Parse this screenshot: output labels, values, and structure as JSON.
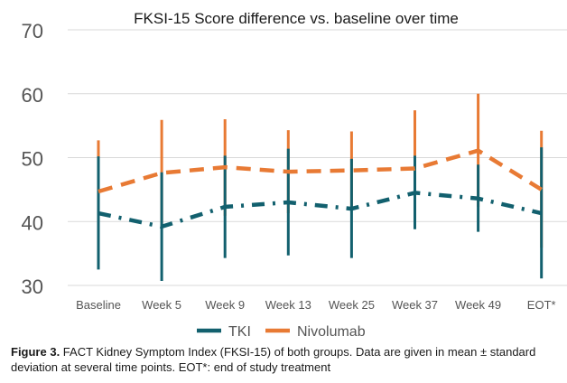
{
  "chart_data": {
    "type": "line",
    "title": "FKSI-15 Score difference vs. baseline over time",
    "categories": [
      "Baseline",
      "Week 5",
      "Week 9",
      "Week 13",
      "Week 25",
      "Week 37",
      "Week 49",
      "EOT*"
    ],
    "ylim": [
      30,
      70
    ],
    "yticks": [
      "30",
      "40",
      "50",
      "60",
      "70"
    ],
    "grid": true,
    "legend_position": "bottom",
    "series": [
      {
        "name": "TKI",
        "color": "#12606e",
        "line_style": "dash-dot",
        "values": [
          41.3,
          39.2,
          42.3,
          43.0,
          42.0,
          44.5,
          43.6,
          41.3
        ],
        "lower": [
          32.5,
          30.7,
          34.3,
          34.7,
          34.3,
          38.8,
          38.4,
          31.1
        ],
        "upper": [
          50.2,
          47.7,
          50.3,
          51.4,
          49.8,
          50.3,
          48.9,
          51.6
        ]
      },
      {
        "name": "Nivolumab",
        "color": "#e87a34",
        "line_style": "dashed",
        "values": [
          44.7,
          47.6,
          48.5,
          47.8,
          48.0,
          48.3,
          51.1,
          45.0
        ],
        "lower": [
          36.7,
          39.2,
          40.9,
          41.3,
          41.9,
          39.2,
          42.3,
          35.9
        ],
        "upper": [
          52.7,
          55.9,
          56.0,
          54.3,
          54.1,
          57.4,
          60.0,
          54.2
        ]
      }
    ]
  },
  "caption": {
    "label": "Figure 3.",
    "text": " FACT Kidney Symptom Index (FKSI-15) of both groups. Data are given in mean ± standard deviation at several time points. EOT*: end of study treatment"
  }
}
